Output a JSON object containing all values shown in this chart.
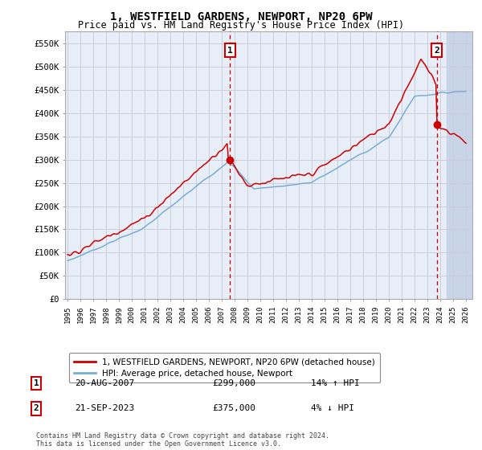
{
  "title": "1, WESTFIELD GARDENS, NEWPORT, NP20 6PW",
  "subtitle": "Price paid vs. HM Land Registry's House Price Index (HPI)",
  "ylabel_ticks": [
    "£0",
    "£50K",
    "£100K",
    "£150K",
    "£200K",
    "£250K",
    "£300K",
    "£350K",
    "£400K",
    "£450K",
    "£500K",
    "£550K"
  ],
  "ytick_values": [
    0,
    50000,
    100000,
    150000,
    200000,
    250000,
    300000,
    350000,
    400000,
    450000,
    500000,
    550000
  ],
  "ylim": [
    0,
    575000
  ],
  "xlim_start": 1994.8,
  "xlim_end": 2026.5,
  "xtick_years": [
    1995,
    1996,
    1997,
    1998,
    1999,
    2000,
    2001,
    2002,
    2003,
    2004,
    2005,
    2006,
    2007,
    2008,
    2009,
    2010,
    2011,
    2012,
    2013,
    2014,
    2015,
    2016,
    2017,
    2018,
    2019,
    2020,
    2021,
    2022,
    2023,
    2024,
    2025,
    2026
  ],
  "purchase1_x": 2007.64,
  "purchase1_y": 299000,
  "purchase2_x": 2023.72,
  "purchase2_y": 375000,
  "legend_line1": "1, WESTFIELD GARDENS, NEWPORT, NP20 6PW (detached house)",
  "legend_line2": "HPI: Average price, detached house, Newport",
  "annotation1_date": "20-AUG-2007",
  "annotation1_price": "£299,000",
  "annotation1_hpi": "14% ↑ HPI",
  "annotation2_date": "21-SEP-2023",
  "annotation2_price": "£375,000",
  "annotation2_hpi": "4% ↓ HPI",
  "footer": "Contains HM Land Registry data © Crown copyright and database right 2024.\nThis data is licensed under the Open Government Licence v3.0.",
  "line_color_red": "#cc0000",
  "line_color_blue": "#7aadd4",
  "grid_color": "#ccccdd",
  "bg_color": "#e8eef8",
  "hatch_color": "#c8d4e8"
}
